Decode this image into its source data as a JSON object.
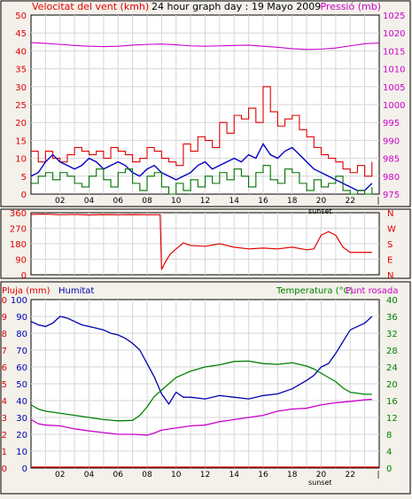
{
  "header": {
    "wind_label": "Velocitat del vent (kmh)",
    "title": "24 hour graph day : 19 Mayo 2009",
    "pressure_label": "Pressió (mb)"
  },
  "colors": {
    "wind_gust": "#e00000",
    "wind_avg": "#0000c0",
    "wind_low": "#007000",
    "pressure": "#cc00cc",
    "direction": "#e00000",
    "humidity": "#0000b0",
    "temperature": "#008000",
    "dewpoint": "#cc00cc",
    "rain": "#e00000",
    "grid": "#d6d6d6",
    "plot_bg": "#ffffff",
    "page_bg": "#f3f1ea"
  },
  "x_axis": {
    "ticks": [
      "02",
      "04",
      "06",
      "08",
      "10",
      "12",
      "14",
      "16",
      "18",
      "20",
      "22"
    ],
    "sunset_label": "sunset"
  },
  "bottom_header": {
    "rain_label": "Pluja (mm)",
    "humidity_label": "Humitat",
    "temp_label": "Temperatura (°C)",
    "dew_label": "Punt rosada"
  },
  "chart_data": [
    {
      "type": "line",
      "name": "wind-pressure",
      "x_range": [
        0,
        24
      ],
      "y_left": {
        "label": "Velocitat del vent (kmh)",
        "range": [
          0,
          50
        ],
        "ticks": [
          "0",
          "5",
          "10",
          "15",
          "20",
          "25",
          "30",
          "35",
          "40",
          "45",
          "50"
        ]
      },
      "y_right": {
        "label": "Pressió (mb)",
        "range": [
          975,
          1025
        ],
        "ticks": [
          "975",
          "980",
          "985",
          "990",
          "995",
          "1000",
          "1005",
          "1010",
          "1015",
          "1020",
          "1025"
        ]
      },
      "series": [
        {
          "key": "gust",
          "axis": "left",
          "step": true,
          "x": [
            0,
            0.5,
            1,
            1.5,
            2,
            2.5,
            3,
            3.5,
            4,
            4.5,
            5,
            5.5,
            6,
            6.5,
            7,
            7.5,
            8,
            8.5,
            9,
            9.5,
            10,
            10.5,
            11,
            11.5,
            12,
            12.5,
            13,
            13.5,
            14,
            14.5,
            15,
            15.5,
            16,
            16.5,
            17,
            17.5,
            18,
            18.5,
            19,
            19.5,
            20,
            20.5,
            21,
            21.5,
            22,
            22.5,
            23,
            23.5
          ],
          "values": [
            12,
            9,
            12,
            10,
            9,
            11,
            13,
            12,
            11,
            12,
            10,
            13,
            12,
            11,
            9,
            10,
            13,
            12,
            10,
            9,
            8,
            14,
            12,
            16,
            15,
            13,
            20,
            17,
            22,
            21,
            24,
            20,
            30,
            23,
            19,
            21,
            22,
            18,
            16,
            13,
            11,
            10,
            9,
            7,
            6,
            8,
            5,
            9
          ]
        },
        {
          "key": "avg",
          "axis": "left",
          "step": false,
          "x": [
            0,
            0.5,
            1,
            1.5,
            2,
            2.5,
            3,
            3.5,
            4,
            4.5,
            5,
            5.5,
            6,
            6.5,
            7,
            7.5,
            8,
            8.5,
            9,
            9.5,
            10,
            10.5,
            11,
            11.5,
            12,
            12.5,
            13,
            13.5,
            14,
            14.5,
            15,
            15.5,
            16,
            16.5,
            17,
            17.5,
            18,
            18.5,
            19,
            19.5,
            20,
            20.5,
            21,
            21.5,
            22,
            22.5,
            23,
            23.5
          ],
          "values": [
            5,
            6,
            9,
            11,
            9,
            8,
            7,
            8,
            10,
            9,
            7,
            8,
            9,
            8,
            6,
            5,
            7,
            8,
            6,
            5,
            4,
            5,
            6,
            8,
            9,
            7,
            8,
            9,
            10,
            9,
            11,
            10,
            14,
            11,
            10,
            12,
            13,
            11,
            9,
            7,
            6,
            5,
            4,
            3,
            2,
            1,
            1,
            3
          ]
        },
        {
          "key": "low",
          "axis": "left",
          "step": true,
          "x": [
            0,
            0.5,
            1,
            1.5,
            2,
            2.5,
            3,
            3.5,
            4,
            4.5,
            5,
            5.5,
            6,
            6.5,
            7,
            7.5,
            8,
            8.5,
            9,
            9.5,
            10,
            10.5,
            11,
            11.5,
            12,
            12.5,
            13,
            13.5,
            14,
            14.5,
            15,
            15.5,
            16,
            16.5,
            17,
            17.5,
            18,
            18.5,
            19,
            19.5,
            20,
            20.5,
            21,
            21.5,
            22,
            22.5,
            23,
            23.5
          ],
          "values": [
            3,
            5,
            6,
            4,
            6,
            5,
            3,
            2,
            5,
            7,
            4,
            2,
            6,
            7,
            3,
            1,
            5,
            6,
            2,
            0,
            3,
            1,
            4,
            2,
            5,
            3,
            6,
            4,
            7,
            5,
            2,
            6,
            8,
            4,
            3,
            7,
            6,
            3,
            1,
            4,
            2,
            3,
            5,
            1,
            0,
            1,
            0,
            2
          ]
        },
        {
          "key": "pressure",
          "axis": "right",
          "step": false,
          "x": [
            0,
            1,
            2,
            3,
            4,
            5,
            6,
            7,
            8,
            9,
            10,
            11,
            12,
            13,
            14,
            15,
            16,
            17,
            18,
            19,
            20,
            21,
            22,
            23,
            24
          ],
          "values": [
            1017.3,
            1017.1,
            1016.8,
            1016.5,
            1016.3,
            1016.2,
            1016.3,
            1016.6,
            1016.8,
            1016.9,
            1016.7,
            1016.4,
            1016.3,
            1016.4,
            1016.5,
            1016.6,
            1016.3,
            1016.0,
            1015.6,
            1015.4,
            1015.5,
            1015.8,
            1016.4,
            1017.0,
            1017.2
          ]
        }
      ]
    },
    {
      "type": "line",
      "name": "wind-direction",
      "x_range": [
        0,
        24
      ],
      "y_left": {
        "range": [
          0,
          360
        ],
        "ticks": [
          "0",
          "90",
          "180",
          "270",
          "360"
        ]
      },
      "y_right": {
        "ticks": [
          "N",
          "E",
          "S",
          "W",
          "N"
        ]
      },
      "series": [
        {
          "key": "direction",
          "x": [
            0,
            1,
            2,
            3,
            4,
            5,
            6,
            7,
            8,
            8.9,
            9.0,
            9.3,
            9.6,
            10.0,
            10.5,
            11,
            12,
            13,
            14,
            15,
            16,
            17,
            18,
            19,
            19.5,
            20,
            20.5,
            21,
            21.5,
            22,
            23,
            23.5
          ],
          "values": [
            350,
            352,
            348,
            350,
            347,
            349,
            348,
            349,
            348,
            348,
            30,
            80,
            120,
            150,
            185,
            170,
            165,
            180,
            160,
            150,
            155,
            150,
            160,
            145,
            150,
            230,
            250,
            230,
            160,
            130,
            130,
            130
          ]
        }
      ]
    },
    {
      "type": "line",
      "name": "humidity-temperature",
      "x_range": [
        0,
        24
      ],
      "y_left_outer": {
        "label": "Pluja (mm)",
        "range": [
          0,
          10
        ],
        "ticks": [
          "0",
          "1",
          "2",
          "3",
          "4",
          "5",
          "6",
          "7",
          "8",
          "9",
          "10"
        ]
      },
      "y_left_inner": {
        "label": "Humitat",
        "range": [
          0,
          100
        ],
        "ticks": [
          "0",
          "10",
          "20",
          "30",
          "40",
          "50",
          "60",
          "70",
          "80",
          "90",
          "100"
        ]
      },
      "y_right": {
        "label": "Temperatura (°C)",
        "range": [
          0,
          40
        ],
        "ticks": [
          "0",
          "4",
          "8",
          "12",
          "16",
          "20",
          "24",
          "28",
          "32",
          "36",
          "40"
        ]
      },
      "series": [
        {
          "key": "humidity",
          "axis": "inner",
          "x": [
            0,
            0.5,
            1,
            1.5,
            2,
            2.5,
            3,
            3.5,
            4,
            4.5,
            5,
            5.5,
            6,
            6.5,
            7,
            7.5,
            8,
            8.5,
            9,
            9.5,
            10,
            10.5,
            11,
            12,
            13,
            14,
            15,
            16,
            17,
            18,
            19,
            19.5,
            20,
            20.5,
            21,
            21.5,
            22,
            23,
            23.5
          ],
          "values": [
            87,
            85,
            84,
            86,
            90,
            89,
            87,
            85,
            84,
            83,
            82,
            80,
            79,
            77,
            74,
            70,
            62,
            54,
            44,
            38,
            45,
            42,
            42,
            41,
            43,
            42,
            41,
            43,
            44,
            47,
            52,
            55,
            60,
            62,
            68,
            75,
            82,
            86,
            90
          ]
        },
        {
          "key": "temperature",
          "axis": "right",
          "x": [
            0,
            0.5,
            1,
            2,
            3,
            4,
            5,
            6,
            7,
            7.5,
            8,
            8.5,
            9,
            9.5,
            10,
            11,
            12,
            13,
            14,
            15,
            16,
            17,
            18,
            19,
            19.5,
            20,
            20.5,
            21,
            21.5,
            22,
            23,
            23.5
          ],
          "values": [
            15,
            14,
            13.5,
            13,
            12.5,
            12,
            11.5,
            11.2,
            11.3,
            12.5,
            14.5,
            17,
            18.5,
            20,
            21.5,
            23,
            24,
            24.5,
            25.3,
            25.4,
            24.8,
            24.6,
            25,
            24.2,
            23.5,
            22.5,
            21.5,
            20.5,
            19,
            18,
            17.5,
            17.5
          ]
        },
        {
          "key": "dewpoint",
          "axis": "right",
          "x": [
            0,
            0.5,
            1,
            2,
            3,
            4,
            5,
            6,
            7,
            8,
            8.5,
            9,
            10,
            11,
            12,
            13,
            14,
            15,
            16,
            17,
            18,
            19,
            20,
            21,
            22,
            23,
            23.5
          ],
          "values": [
            11.5,
            10.5,
            10.2,
            10,
            9.3,
            8.8,
            8.4,
            8,
            8,
            7.8,
            8.3,
            9,
            9.5,
            10,
            10.2,
            11,
            11.5,
            12,
            12.5,
            13.5,
            14,
            14.2,
            15,
            15.5,
            15.8,
            16.2,
            16.3
          ]
        },
        {
          "key": "rain",
          "axis": "outer",
          "x": [
            0,
            24
          ],
          "values": [
            0,
            0
          ]
        }
      ]
    }
  ]
}
